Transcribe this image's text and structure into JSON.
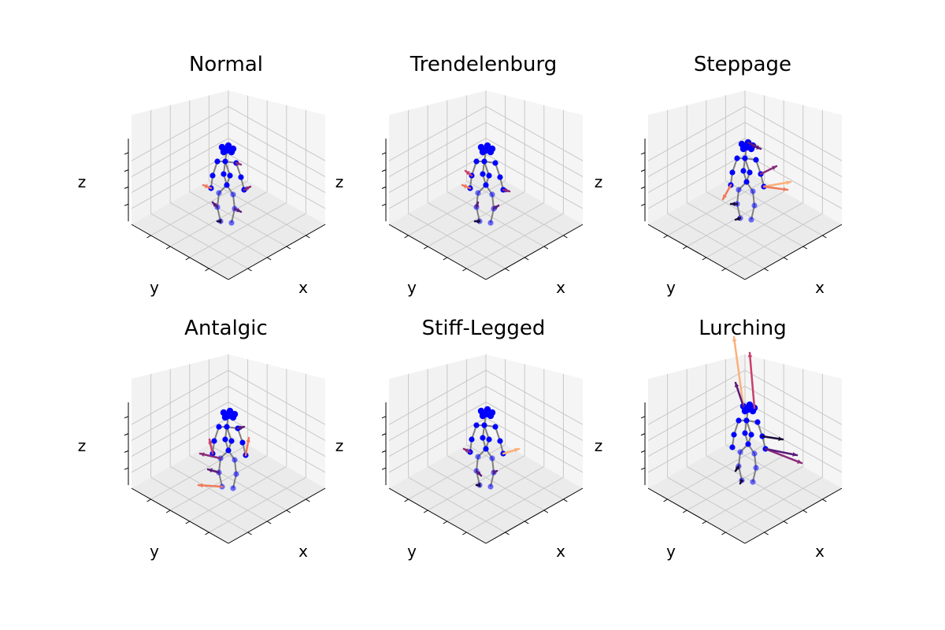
{
  "chart_data": [
    {
      "type": "scatter3d",
      "title": "Normal",
      "xlabel": "x",
      "ylabel": "y",
      "zlabel": "z",
      "grid": true
    },
    {
      "type": "scatter3d",
      "title": "Trendelenburg",
      "xlabel": "x",
      "ylabel": "y",
      "zlabel": "z",
      "grid": true
    },
    {
      "type": "scatter3d",
      "title": "Steppage",
      "xlabel": "x",
      "ylabel": "y",
      "zlabel": "z",
      "grid": true
    },
    {
      "type": "scatter3d",
      "title": "Antalgic",
      "xlabel": "x",
      "ylabel": "y",
      "zlabel": "z",
      "grid": true
    },
    {
      "type": "scatter3d",
      "title": "Stiff-Legged",
      "xlabel": "x",
      "ylabel": "y",
      "zlabel": "z",
      "grid": true
    },
    {
      "type": "scatter3d",
      "title": "Lurching",
      "xlabel": "x",
      "ylabel": "y",
      "zlabel": "z",
      "grid": true
    }
  ],
  "colors": {
    "joint": "#0000ff",
    "bone": "#808080",
    "pane_left": "#f2f2f2",
    "pane_right": "#f5f5f5",
    "pane_floor": "#ebebeb",
    "grid": "#c8c8c8",
    "arrows": [
      "#1a0a3a",
      "#5a1a7a",
      "#8a2a7a",
      "#c8406a",
      "#f07a5a",
      "#fbb07a"
    ]
  }
}
